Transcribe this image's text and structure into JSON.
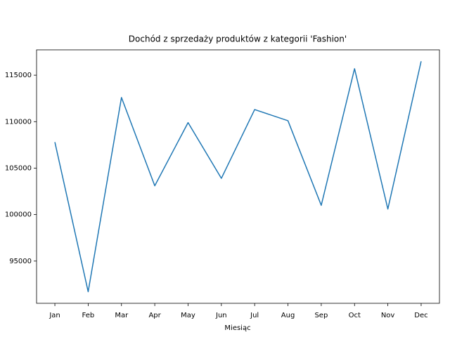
{
  "chart_data": {
    "type": "line",
    "title": "Dochód z sprzedaży produktów z kategorii 'Fashion'",
    "xlabel": "Miesiąc",
    "categories": [
      "Jan",
      "Feb",
      "Mar",
      "Apr",
      "May",
      "Jun",
      "Jul",
      "Aug",
      "Sep",
      "Oct",
      "Nov",
      "Dec"
    ],
    "values": [
      107800,
      91700,
      112600,
      103100,
      109900,
      103900,
      111300,
      110100,
      101000,
      115700,
      100600,
      116500
    ],
    "color": "#1f77b4",
    "ylim": [
      90455,
      117727
    ],
    "yticks": [
      95000,
      100000,
      105000,
      110000,
      115000
    ]
  }
}
